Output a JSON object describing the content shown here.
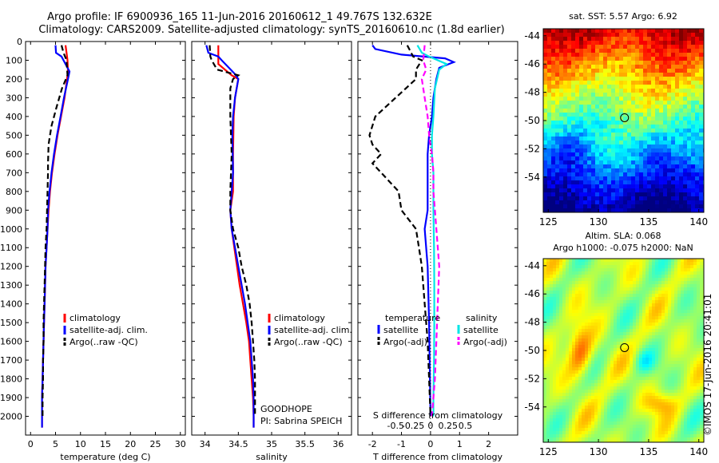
{
  "title_line1": "Argo profile: IF 6900936_165 11-Jun-2016 20160612_1 49.767S 132.632E",
  "title_line2": "Climatology: CARS2009. Satellite-adjusted climatology: synTS_20160610.nc (1.8d earlier)",
  "credit": "©IMOS 17-Jun-2016 20:41:01",
  "colors": {
    "clim": "#ff0000",
    "sat": "#0000ff",
    "argo": "#000000",
    "sat_sal": "#00e6e6",
    "argo_sal": "#ff00ff"
  },
  "chart_data": [
    {
      "type": "line",
      "xlabel": "temperature (deg C)",
      "xlim": [
        -1,
        31
      ],
      "xticks": [
        0,
        5,
        10,
        15,
        20,
        25,
        30
      ],
      "xtick_labels": [
        "0",
        "5",
        "10",
        "15",
        "20",
        "25",
        "30"
      ],
      "ylim": [
        2100,
        0
      ],
      "yticks": [
        0,
        100,
        200,
        300,
        400,
        500,
        600,
        700,
        800,
        900,
        1000,
        1100,
        1200,
        1300,
        1400,
        1500,
        1600,
        1700,
        1800,
        1900,
        2000
      ],
      "legend": [
        "climatology",
        "satellite-adj. clim.",
        "Argo(..raw -QC)"
      ],
      "series": [
        {
          "name": "climatology",
          "color": "#ff0000",
          "dash": "solid",
          "points": [
            [
              7.0,
              20
            ],
            [
              7.2,
              60
            ],
            [
              7.4,
              100
            ],
            [
              7.5,
              160
            ],
            [
              7.3,
              200
            ],
            [
              6.8,
              300
            ],
            [
              6.1,
              400
            ],
            [
              5.4,
              500
            ],
            [
              4.8,
              600
            ],
            [
              4.3,
              700
            ],
            [
              3.9,
              800
            ],
            [
              3.6,
              900
            ],
            [
              3.4,
              1000
            ],
            [
              3.2,
              1100
            ],
            [
              3.0,
              1200
            ],
            [
              2.9,
              1300
            ],
            [
              2.8,
              1400
            ],
            [
              2.7,
              1500
            ],
            [
              2.6,
              1600
            ],
            [
              2.5,
              1700
            ],
            [
              2.4,
              1800
            ],
            [
              2.3,
              1900
            ],
            [
              2.3,
              2000
            ],
            [
              2.3,
              2060
            ]
          ]
        },
        {
          "name": "satellite-adj. clim.",
          "color": "#0000ff",
          "dash": "solid",
          "points": [
            [
              5.0,
              20
            ],
            [
              5.1,
              60
            ],
            [
              6.2,
              80
            ],
            [
              6.6,
              100
            ],
            [
              7.8,
              160
            ],
            [
              7.5,
              200
            ],
            [
              6.7,
              300
            ],
            [
              6.0,
              400
            ],
            [
              5.3,
              500
            ],
            [
              4.7,
              600
            ],
            [
              4.2,
              700
            ],
            [
              3.8,
              800
            ],
            [
              3.5,
              900
            ],
            [
              3.4,
              1000
            ],
            [
              3.2,
              1100
            ],
            [
              3.0,
              1200
            ],
            [
              2.9,
              1300
            ],
            [
              2.8,
              1400
            ],
            [
              2.7,
              1500
            ],
            [
              2.6,
              1600
            ],
            [
              2.5,
              1700
            ],
            [
              2.4,
              1800
            ],
            [
              2.3,
              1900
            ],
            [
              2.3,
              2000
            ],
            [
              2.3,
              2060
            ]
          ]
        },
        {
          "name": "Argo(..raw -QC)",
          "color": "#000000",
          "dash": "dash",
          "points": [
            [
              6.2,
              20
            ],
            [
              6.6,
              60
            ],
            [
              7.2,
              100
            ],
            [
              7.4,
              180
            ],
            [
              6.3,
              250
            ],
            [
              5.2,
              350
            ],
            [
              4.2,
              450
            ],
            [
              3.9,
              500
            ],
            [
              3.6,
              550
            ],
            [
              3.5,
              650
            ],
            [
              3.5,
              700
            ],
            [
              3.4,
              800
            ],
            [
              3.3,
              900
            ],
            [
              3.2,
              1000
            ],
            [
              3.0,
              1100
            ],
            [
              2.9,
              1200
            ],
            [
              2.8,
              1300
            ],
            [
              2.7,
              1400
            ],
            [
              2.6,
              1500
            ],
            [
              2.6,
              1600
            ],
            [
              2.5,
              1700
            ],
            [
              2.5,
              1800
            ],
            [
              2.4,
              1900
            ],
            [
              2.4,
              2000
            ]
          ]
        }
      ]
    },
    {
      "type": "line",
      "xlabel": "salinity",
      "xlim": [
        33.8,
        36.2
      ],
      "xticks": [
        34,
        34.5,
        35,
        35.5,
        36
      ],
      "xtick_labels": [
        "34",
        "34.5",
        "35",
        "35.5",
        "36"
      ],
      "ylim": [
        2100,
        0
      ],
      "legend": [
        "climatology",
        "satellite-adj. clim.",
        "Argo(..raw -QC)"
      ],
      "annotations": [
        "GOODHOPE",
        "PI: Sabrina SPEICH"
      ],
      "series": [
        {
          "name": "climatology",
          "color": "#ff0000",
          "dash": "solid",
          "points": [
            [
              34.2,
              20
            ],
            [
              34.2,
              80
            ],
            [
              34.2,
              120
            ],
            [
              34.4,
              180
            ],
            [
              34.5,
              200
            ],
            [
              34.45,
              300
            ],
            [
              34.43,
              400
            ],
            [
              34.42,
              600
            ],
            [
              34.42,
              800
            ],
            [
              34.38,
              900
            ],
            [
              34.4,
              1000
            ],
            [
              34.44,
              1100
            ],
            [
              34.48,
              1200
            ],
            [
              34.52,
              1300
            ],
            [
              34.57,
              1400
            ],
            [
              34.62,
              1500
            ],
            [
              34.66,
              1600
            ],
            [
              34.68,
              1700
            ],
            [
              34.7,
              1800
            ],
            [
              34.72,
              1900
            ],
            [
              34.73,
              2000
            ],
            [
              34.73,
              2060
            ]
          ]
        },
        {
          "name": "satellite-adj. clim.",
          "color": "#0000ff",
          "dash": "solid",
          "points": [
            [
              34.02,
              20
            ],
            [
              34.05,
              60
            ],
            [
              34.2,
              80
            ],
            [
              34.25,
              100
            ],
            [
              34.44,
              170
            ],
            [
              34.5,
              200
            ],
            [
              34.45,
              300
            ],
            [
              34.42,
              400
            ],
            [
              34.41,
              500
            ],
            [
              34.42,
              700
            ],
            [
              34.4,
              800
            ],
            [
              34.38,
              900
            ],
            [
              34.4,
              1000
            ],
            [
              34.45,
              1100
            ],
            [
              34.5,
              1200
            ],
            [
              34.55,
              1300
            ],
            [
              34.6,
              1400
            ],
            [
              34.64,
              1500
            ],
            [
              34.68,
              1600
            ],
            [
              34.7,
              1700
            ],
            [
              34.72,
              1800
            ],
            [
              34.73,
              1900
            ],
            [
              34.73,
              2000
            ],
            [
              34.73,
              2060
            ]
          ]
        },
        {
          "name": "Argo(..raw -QC)",
          "color": "#000000",
          "dash": "dash",
          "points": [
            [
              34.07,
              20
            ],
            [
              34.08,
              80
            ],
            [
              34.1,
              100
            ],
            [
              34.18,
              150
            ],
            [
              34.5,
              180
            ],
            [
              34.42,
              200
            ],
            [
              34.38,
              250
            ],
            [
              34.38,
              400
            ],
            [
              34.4,
              600
            ],
            [
              34.38,
              800
            ],
            [
              34.38,
              900
            ],
            [
              34.42,
              1000
            ],
            [
              34.5,
              1100
            ],
            [
              34.55,
              1200
            ],
            [
              34.62,
              1300
            ],
            [
              34.67,
              1400
            ],
            [
              34.7,
              1500
            ],
            [
              34.72,
              1600
            ],
            [
              34.74,
              1700
            ],
            [
              34.75,
              1800
            ],
            [
              34.75,
              1900
            ],
            [
              34.75,
              2000
            ]
          ]
        }
      ]
    },
    {
      "type": "line",
      "xlabel": "T difference from climatology",
      "xlabel_top": "S difference from climatology",
      "xlim": [
        -2.5,
        3.0
      ],
      "xticks": [
        -2,
        -1,
        0,
        1,
        2
      ],
      "xtick_labels": [
        "-2",
        "-1",
        "0",
        "1",
        "2"
      ],
      "sticks": [
        -0.5,
        -0.25,
        0,
        0.25,
        0.5
      ],
      "stick_labels": [
        "-0.5",
        "-0.25",
        "0",
        "0.25",
        "0.5"
      ],
      "ylim": [
        2100,
        0
      ],
      "legend_title_t": "temperature",
      "legend_title_s": "salinity",
      "legend": [
        "satellite",
        "Argo(-adj)",
        "satellite",
        "Argo(-adj)"
      ],
      "series": [
        {
          "name": "T satellite",
          "color": "#0000ff",
          "dash": "solid",
          "points": [
            [
              -2.0,
              20
            ],
            [
              -1.9,
              40
            ],
            [
              -1.0,
              70
            ],
            [
              0.5,
              90
            ],
            [
              0.8,
              110
            ],
            [
              0.3,
              140
            ],
            [
              0.2,
              200
            ],
            [
              0.1,
              300
            ],
            [
              0.05,
              400
            ],
            [
              -0.05,
              500
            ],
            [
              -0.1,
              600
            ],
            [
              -0.1,
              700
            ],
            [
              -0.1,
              800
            ],
            [
              -0.1,
              900
            ],
            [
              -0.2,
              1000
            ],
            [
              -0.1,
              1200
            ],
            [
              -0.05,
              1500
            ],
            [
              0,
              2000
            ]
          ]
        },
        {
          "name": "T Argo(-adj)",
          "color": "#000000",
          "dash": "dash",
          "points": [
            [
              -0.8,
              20
            ],
            [
              -0.6,
              80
            ],
            [
              -0.3,
              100
            ],
            [
              -0.5,
              150
            ],
            [
              -0.5,
              200
            ],
            [
              -1.2,
              300
            ],
            [
              -1.9,
              400
            ],
            [
              -2.1,
              500
            ],
            [
              -2.0,
              550
            ],
            [
              -1.7,
              600
            ],
            [
              -2.0,
              650
            ],
            [
              -1.7,
              700
            ],
            [
              -1.1,
              800
            ],
            [
              -1.0,
              900
            ],
            [
              -0.5,
              1000
            ],
            [
              -0.4,
              1100
            ],
            [
              -0.3,
              1200
            ],
            [
              -0.2,
              1400
            ],
            [
              -0.1,
              1600
            ],
            [
              -0.05,
              1800
            ],
            [
              0,
              2000
            ]
          ]
        },
        {
          "name": "S satellite",
          "color": "#00e6e6",
          "dash": "solid",
          "points": [
            [
              -0.45,
              20
            ],
            [
              -0.3,
              60
            ],
            [
              -0.05,
              80
            ],
            [
              0.55,
              120
            ],
            [
              0.3,
              150
            ],
            [
              0.15,
              250
            ],
            [
              0.1,
              400
            ],
            [
              0.05,
              500
            ],
            [
              0.05,
              600
            ],
            [
              0.1,
              700
            ],
            [
              0.1,
              900
            ],
            [
              0.12,
              1100
            ],
            [
              0.13,
              1300
            ],
            [
              0.13,
              1500
            ],
            [
              0.12,
              1700
            ],
            [
              0.1,
              1900
            ],
            [
              0.1,
              2000
            ]
          ]
        },
        {
          "name": "S Argo(-adj)",
          "color": "#ff00ff",
          "dash": "dash",
          "points": [
            [
              -0.2,
              20
            ],
            [
              -0.25,
              100
            ],
            [
              -0.15,
              150
            ],
            [
              -0.3,
              200
            ],
            [
              -0.2,
              300
            ],
            [
              -0.1,
              400
            ],
            [
              -0.05,
              500
            ],
            [
              0.05,
              600
            ],
            [
              0.1,
              700
            ],
            [
              0.1,
              800
            ],
            [
              0.15,
              900
            ],
            [
              0.2,
              1000
            ],
            [
              0.25,
              1100
            ],
            [
              0.3,
              1200
            ],
            [
              0.25,
              1400
            ],
            [
              0.2,
              1600
            ],
            [
              0.15,
              1800
            ],
            [
              0.1,
              1900
            ],
            [
              0.05,
              2000
            ]
          ]
        }
      ]
    },
    {
      "type": "heatmap",
      "title": "sat. SST: 5.57 Argo: 6.92",
      "xlim": [
        124.5,
        140.5
      ],
      "ylim": [
        -56.5,
        -43.5
      ],
      "xticks": [
        125,
        130,
        135,
        140
      ],
      "yticks": [
        -44,
        -46,
        -48,
        -50,
        -52,
        -54
      ],
      "ytick_labels": [
        "-44",
        "-46",
        "-48",
        "-50",
        "-52",
        "-54"
      ],
      "marker": [
        132.6,
        -49.8
      ]
    },
    {
      "type": "heatmap",
      "title_line1": "Altim. SLA: 0.068",
      "title_line2": "Argo h1000: -0.075 h2000: NaN",
      "xlim": [
        124.5,
        140.5
      ],
      "ylim": [
        -56.5,
        -43.5
      ],
      "xticks": [
        125,
        130,
        135,
        140
      ],
      "yticks": [
        -44,
        -46,
        -48,
        -50,
        -52,
        -54
      ],
      "ytick_labels": [
        "-44",
        "-46",
        "-48",
        "-50",
        "-52",
        "-54"
      ],
      "marker": [
        132.6,
        -49.8
      ]
    }
  ]
}
